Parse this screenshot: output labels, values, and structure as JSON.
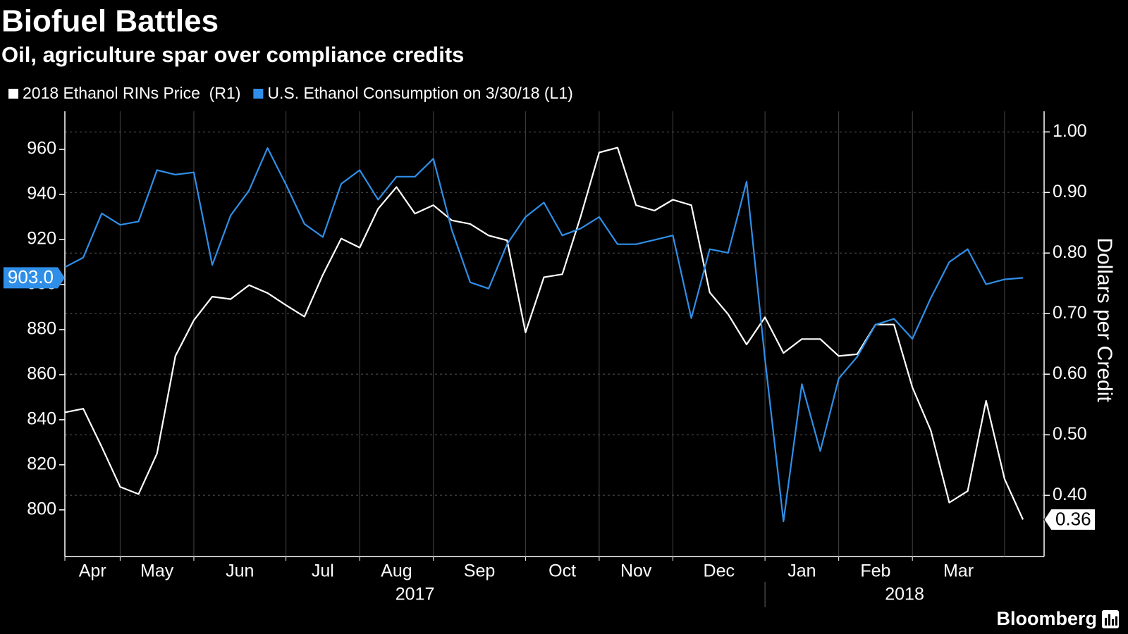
{
  "chart_data": {
    "type": "line",
    "title": "Biofuel Battles",
    "subtitle": "Oil, agriculture spar over compliance credits",
    "source": "Bloomberg",
    "categories": [
      "Apr",
      null,
      null,
      "May",
      null,
      null,
      null,
      "Jun",
      null,
      null,
      null,
      null,
      "Jul",
      null,
      null,
      null,
      "Aug",
      null,
      null,
      null,
      "Sep",
      null,
      null,
      null,
      null,
      "Oct",
      null,
      null,
      null,
      "Nov",
      null,
      null,
      null,
      "Dec",
      null,
      null,
      null,
      null,
      "Jan",
      null,
      null,
      null,
      "Feb",
      null,
      null,
      null,
      "Mar",
      null,
      null,
      null,
      null,
      null,
      null
    ],
    "category_groups": [
      "2017",
      null,
      null,
      null,
      null,
      null,
      null,
      null,
      null,
      null,
      null,
      null,
      null,
      null,
      null,
      null,
      null,
      null,
      null,
      null,
      null,
      null,
      null,
      null,
      null,
      null,
      null,
      null,
      null,
      null,
      null,
      null,
      null,
      null,
      null,
      null,
      null,
      null,
      "2018",
      null,
      null,
      null,
      null,
      null,
      null,
      null,
      null,
      null,
      null,
      null,
      null,
      null,
      null
    ],
    "series": [
      {
        "name": "2018 Ethanol RINs Price  (R1)",
        "color": "#ffffff",
        "axis": "y2",
        "values": [
          0.537,
          0.543,
          0.48,
          0.414,
          0.402,
          0.469,
          0.63,
          0.689,
          0.728,
          0.724,
          0.747,
          0.734,
          0.714,
          0.695,
          0.764,
          0.824,
          0.809,
          0.873,
          0.909,
          0.865,
          0.879,
          0.854,
          0.848,
          0.829,
          0.821,
          0.669,
          0.76,
          0.765,
          0.861,
          0.966,
          0.974,
          0.879,
          0.87,
          0.888,
          0.879,
          0.735,
          0.699,
          0.649,
          0.694,
          0.635,
          0.658,
          0.658,
          0.63,
          0.633,
          0.682,
          0.682,
          0.578,
          0.507,
          0.388,
          0.407,
          0.556,
          0.427,
          0.36
        ]
      },
      {
        "name": "U.S. Ethanol Consumption on 3/30/18 (L1)",
        "color": "#2f8fe8",
        "values": [
          907.7,
          912,
          931.6,
          926.5,
          928,
          950.8,
          948.8,
          949.8,
          908.7,
          930.7,
          941.8,
          960.6,
          944.4,
          926.9,
          921.1,
          944.7,
          950.8,
          937.7,
          947.9,
          947.9,
          955.9,
          924.3,
          901,
          898.2,
          917.9,
          930,
          936.4,
          921.8,
          924.9,
          930,
          917.9,
          917.9,
          919.8,
          921.8,
          885.1,
          915.7,
          914.1,
          945.7,
          866.9,
          794.9,
          855.8,
          826.1,
          858.3,
          867.9,
          882.2,
          884.8,
          875.9,
          894,
          910,
          915.7,
          900.1,
          902.3,
          903
        ],
        "value_labels": [
          null,
          null,
          null,
          null,
          null,
          null,
          null,
          null,
          null,
          null,
          null,
          null,
          null,
          null,
          null,
          null,
          null,
          null,
          null,
          null,
          null,
          null,
          null,
          null,
          null,
          null,
          null,
          null,
          null,
          null,
          null,
          null,
          null,
          null,
          null,
          null,
          null,
          null,
          null,
          null,
          null,
          null,
          null,
          null,
          null,
          null,
          null,
          null,
          null,
          null,
          null,
          null,
          "903.0"
        ]
      }
    ],
    "ylim": [
      779.3,
      976.9
    ],
    "yticks": [
      800,
      820,
      840,
      860,
      880,
      900,
      920,
      940,
      960
    ],
    "y2lim": [
      0.299,
      1.034
    ],
    "y2ticks": [
      {
        "value": 0.4,
        "label": "0.40"
      },
      {
        "value": 0.5,
        "label": "0.50"
      },
      {
        "value": 0.6,
        "label": "0.60"
      },
      {
        "value": 0.7,
        "label": "0.70"
      },
      {
        "value": 0.8,
        "label": "0.80"
      },
      {
        "value": 0.9,
        "label": "0.90"
      },
      {
        "value": 1,
        "label": "1.00"
      }
    ],
    "y2label": "Dollars per Credit",
    "grid": true,
    "legend": "top-left"
  }
}
